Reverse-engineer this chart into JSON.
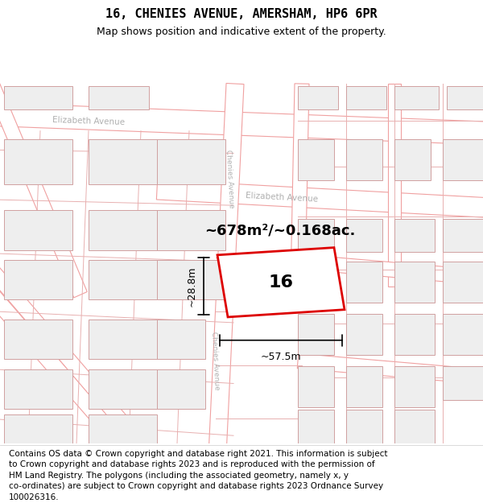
{
  "title": "16, CHENIES AVENUE, AMERSHAM, HP6 6PR",
  "subtitle": "Map shows position and indicative extent of the property.",
  "footer": "Contains OS data © Crown copyright and database right 2021. This information is subject\nto Crown copyright and database rights 2023 and is reproduced with the permission of\nHM Land Registry. The polygons (including the associated geometry, namely x, y\nco-ordinates) are subject to Crown copyright and database rights 2023 Ordnance Survey\n100026316.",
  "area_label": "~678m²/~0.168ac.",
  "width_label": "~57.5m",
  "height_label": "~28.8m",
  "property_number": "16",
  "map_bg": "#ffffff",
  "road_outline": "#f0a0a0",
  "road_fill": "#ffffff",
  "block_fill": "#eeeeee",
  "block_stroke": "#d0a0a0",
  "parcel_stroke": "#e8b0b0",
  "property_stroke": "#dd0000",
  "property_fill": "#ffffff",
  "street_label_color": "#b0b0b0",
  "dim_color": "#000000",
  "title_fontsize": 11,
  "subtitle_fontsize": 9,
  "footer_fontsize": 7.5,
  "label_fontsize": 13
}
